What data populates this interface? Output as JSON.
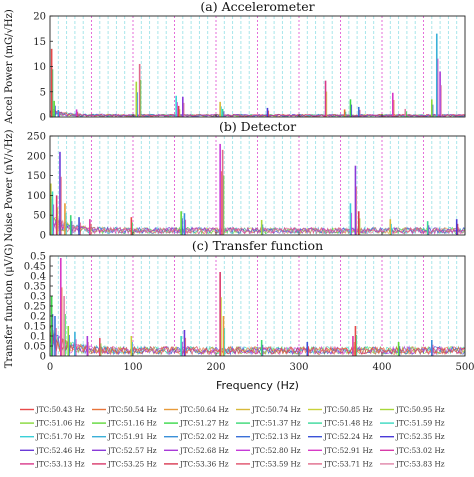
{
  "chart_data": [
    {
      "type": "line",
      "title": "(a) Accelerometer",
      "ylabel": "Accel Power (mG/√Hz)",
      "xlim": [
        0,
        500
      ],
      "ylim": [
        0,
        20
      ],
      "yticks": [
        0,
        5,
        10,
        15,
        20
      ],
      "noise_level": 0.4,
      "peaks": [
        {
          "x": 2,
          "y": 13.5
        },
        {
          "x": 5,
          "y": 3.2
        },
        {
          "x": 10,
          "y": 1.4
        },
        {
          "x": 32,
          "y": 1.5
        },
        {
          "x": 108,
          "y": 10.5
        },
        {
          "x": 104,
          "y": 7.0
        },
        {
          "x": 152,
          "y": 4.2
        },
        {
          "x": 160,
          "y": 4.0
        },
        {
          "x": 155,
          "y": 2.2
        },
        {
          "x": 205,
          "y": 3.0
        },
        {
          "x": 208,
          "y": 1.6
        },
        {
          "x": 262,
          "y": 1.8
        },
        {
          "x": 332,
          "y": 7.2
        },
        {
          "x": 355,
          "y": 1.5
        },
        {
          "x": 362,
          "y": 3.5
        },
        {
          "x": 372,
          "y": 2.0
        },
        {
          "x": 413,
          "y": 4.8
        },
        {
          "x": 428,
          "y": 1.6
        },
        {
          "x": 460,
          "y": 3.5
        },
        {
          "x": 466,
          "y": 16.5
        },
        {
          "x": 470,
          "y": 9.0
        }
      ]
    },
    {
      "type": "line",
      "title": "(b) Detector",
      "ylabel": "Noise Power (nV/√Hz)",
      "xlim": [
        0,
        500
      ],
      "ylim": [
        0,
        250
      ],
      "yticks": [
        0,
        50,
        100,
        150,
        200,
        250
      ],
      "noise_level": 14,
      "peaks": [
        {
          "x": 1,
          "y": 130
        },
        {
          "x": 3,
          "y": 110
        },
        {
          "x": 12,
          "y": 210
        },
        {
          "x": 8,
          "y": 100
        },
        {
          "x": 18,
          "y": 80
        },
        {
          "x": 25,
          "y": 50
        },
        {
          "x": 35,
          "y": 45
        },
        {
          "x": 48,
          "y": 40
        },
        {
          "x": 98,
          "y": 45
        },
        {
          "x": 158,
          "y": 60
        },
        {
          "x": 162,
          "y": 55
        },
        {
          "x": 205,
          "y": 230
        },
        {
          "x": 208,
          "y": 215
        },
        {
          "x": 255,
          "y": 38
        },
        {
          "x": 362,
          "y": 80
        },
        {
          "x": 368,
          "y": 175
        },
        {
          "x": 372,
          "y": 60
        },
        {
          "x": 410,
          "y": 40
        },
        {
          "x": 455,
          "y": 35
        },
        {
          "x": 490,
          "y": 40
        }
      ]
    },
    {
      "type": "line",
      "title": "(c) Transfer function",
      "ylabel": "Transfer function (μV/G)",
      "xlabel": "Frequency (Hz)",
      "xlim": [
        0,
        500
      ],
      "ylim": [
        0,
        0.5
      ],
      "yticks": [
        0,
        0.05,
        0.1,
        0.15,
        0.2,
        0.25,
        0.3,
        0.35,
        0.4,
        0.45,
        0.5
      ],
      "ytick_labels": [
        "0",
        "0.05",
        "0.1",
        "0.15",
        "0.2",
        "0.25",
        "0.3",
        "0.35",
        "0.4",
        "0.45",
        "0.5"
      ],
      "xticks": [
        0,
        100,
        200,
        300,
        400,
        500
      ],
      "noise_level": 0.035,
      "peaks": [
        {
          "x": 2,
          "y": 0.3
        },
        {
          "x": 6,
          "y": 0.2
        },
        {
          "x": 13,
          "y": 0.49
        },
        {
          "x": 17,
          "y": 0.3
        },
        {
          "x": 22,
          "y": 0.15
        },
        {
          "x": 30,
          "y": 0.12
        },
        {
          "x": 45,
          "y": 0.1
        },
        {
          "x": 60,
          "y": 0.09
        },
        {
          "x": 98,
          "y": 0.1
        },
        {
          "x": 158,
          "y": 0.1
        },
        {
          "x": 162,
          "y": 0.13
        },
        {
          "x": 205,
          "y": 0.42
        },
        {
          "x": 209,
          "y": 0.2
        },
        {
          "x": 255,
          "y": 0.08
        },
        {
          "x": 310,
          "y": 0.07
        },
        {
          "x": 365,
          "y": 0.1
        },
        {
          "x": 368,
          "y": 0.15
        },
        {
          "x": 420,
          "y": 0.07
        },
        {
          "x": 460,
          "y": 0.08
        }
      ]
    }
  ],
  "guide_lines": {
    "x_cyan": [
      10,
      20,
      30,
      40,
      60,
      70,
      80,
      90,
      110,
      120,
      130,
      140,
      160,
      170,
      180,
      190,
      210,
      220,
      230,
      240,
      260,
      270,
      280,
      290,
      310,
      320,
      330,
      340,
      360,
      370,
      380,
      390,
      410,
      420,
      430,
      440,
      460,
      470,
      480,
      490
    ],
    "x_magenta": [
      50,
      100,
      150,
      200,
      250,
      300,
      350,
      400,
      450
    ],
    "cyan_color": "#9fe3e8",
    "magenta_color": "#e35fd6"
  },
  "legend": {
    "entries": [
      {
        "label": "JTC:50.43 Hz",
        "color": "#e84a4a"
      },
      {
        "label": "JTC:50.54 Hz",
        "color": "#e8743a"
      },
      {
        "label": "JTC:50.64 Hz",
        "color": "#e89b3a"
      },
      {
        "label": "JTC:50.74 Hz",
        "color": "#d8b93a"
      },
      {
        "label": "JTC:50.85 Hz",
        "color": "#c9d23a"
      },
      {
        "label": "JTC:50.95 Hz",
        "color": "#a8d83a"
      },
      {
        "label": "JTC:51.06 Hz",
        "color": "#86d83a"
      },
      {
        "label": "JTC:51.16 Hz",
        "color": "#5fd83a"
      },
      {
        "label": "JTC:51.27 Hz",
        "color": "#3ad84a"
      },
      {
        "label": "JTC:51.37 Hz",
        "color": "#3ad874"
      },
      {
        "label": "JTC:51.48 Hz",
        "color": "#3ad89b"
      },
      {
        "label": "JTC:51.59 Hz",
        "color": "#3ad8c0"
      },
      {
        "label": "JTC:51.70 Hz",
        "color": "#3ad0d8"
      },
      {
        "label": "JTC:51.91 Hz",
        "color": "#3ab0d8"
      },
      {
        "label": "JTC:52.02 Hz",
        "color": "#3a90d8"
      },
      {
        "label": "JTC:52.13 Hz",
        "color": "#3a70d8"
      },
      {
        "label": "JTC:52.24 Hz",
        "color": "#3a52d8"
      },
      {
        "label": "JTC:52.35 Hz",
        "color": "#4a3ad8"
      },
      {
        "label": "JTC:52.46 Hz",
        "color": "#6a3ad8"
      },
      {
        "label": "JTC:52.57 Hz",
        "color": "#8a3ad8"
      },
      {
        "label": "JTC:52.68 Hz",
        "color": "#a83ad8"
      },
      {
        "label": "JTC:52.80 Hz",
        "color": "#c53ad8"
      },
      {
        "label": "JTC:52.91 Hz",
        "color": "#d83ac6"
      },
      {
        "label": "JTC:53.02 Hz",
        "color": "#d83aa8"
      },
      {
        "label": "JTC:53.13 Hz",
        "color": "#d83a8a"
      },
      {
        "label": "JTC:53.25 Hz",
        "color": "#d83a6c"
      },
      {
        "label": "JTC:53.36 Hz",
        "color": "#d83a52"
      },
      {
        "label": "JTC:53.59 Hz",
        "color": "#e0506a"
      },
      {
        "label": "JTC:53.71 Hz",
        "color": "#e06a8a"
      },
      {
        "label": "JTC:53.83 Hz",
        "color": "#e086a8"
      }
    ]
  }
}
